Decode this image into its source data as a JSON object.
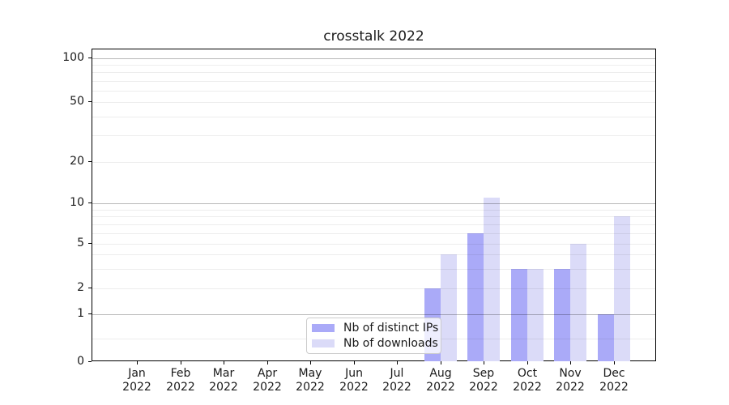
{
  "chart_data": {
    "type": "bar",
    "title": "crosstalk 2022",
    "categories": [
      "Jan 2022",
      "Feb 2022",
      "Mar 2022",
      "Apr 2022",
      "May 2022",
      "Jun 2022",
      "Jul 2022",
      "Aug 2022",
      "Sep 2022",
      "Oct 2022",
      "Nov 2022",
      "Dec 2022"
    ],
    "series": [
      {
        "name": "Nb of distinct IPs",
        "color": "#aaaaf8",
        "values": [
          0,
          0,
          0,
          0,
          0,
          0,
          0,
          2,
          6,
          3,
          3,
          1
        ]
      },
      {
        "name": "Nb of downloads",
        "color": "#dbdbf8",
        "values": [
          0,
          0,
          0,
          0,
          0,
          0,
          0,
          4,
          11,
          3,
          5,
          8
        ]
      }
    ],
    "xlabel": "",
    "ylabel": "",
    "yscale": "symlog",
    "ylim": [
      0,
      120
    ],
    "yticks": [
      0,
      1,
      2,
      5,
      10,
      20,
      50,
      100
    ],
    "grid": {
      "on": true,
      "major": [
        1,
        10,
        100
      ],
      "minor": [
        0.5,
        2,
        3,
        4,
        5,
        6,
        7,
        8,
        9,
        20,
        30,
        40,
        50,
        60,
        70,
        80,
        90
      ]
    },
    "legend": {
      "position": "lower center",
      "entries": [
        "Nb of distinct IPs",
        "Nb of downloads"
      ]
    }
  },
  "colors": {
    "ips_bar": "#aaaaf8",
    "downloads_bar": "#dbdbf8",
    "major_grid": "#b8b8b8",
    "minor_grid": "#ededed",
    "spine": "#000000",
    "text": "#1a1a1a"
  }
}
